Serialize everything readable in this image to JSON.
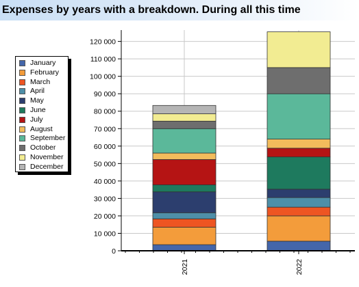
{
  "title": "Expenses by years with a breakdown. During all this time",
  "chart_data": {
    "type": "bar",
    "stacked": true,
    "title": "Expenses by years with a breakdown. During all this time",
    "categories": [
      "2021",
      "2022"
    ],
    "ylim": [
      0,
      125000
    ],
    "y_ticks": [
      "0",
      "10 000",
      "20 000",
      "30 000",
      "40 000",
      "50 000",
      "60 000",
      "70 000",
      "80 000",
      "90 000",
      "100 000",
      "110 000",
      "120 000"
    ],
    "y_tick_values": [
      0,
      10000,
      20000,
      30000,
      40000,
      50000,
      60000,
      70000,
      80000,
      90000,
      100000,
      110000,
      120000
    ],
    "grid": true,
    "legend_position": "left",
    "series": [
      {
        "name": "January",
        "color": "#4466aa",
        "values": [
          3500,
          5500
        ]
      },
      {
        "name": "February",
        "color": "#f39c3b",
        "values": [
          10000,
          14500
        ]
      },
      {
        "name": "March",
        "color": "#ee5522",
        "values": [
          4800,
          5000
        ]
      },
      {
        "name": "April",
        "color": "#4e8fa8",
        "values": [
          3500,
          5500
        ]
      },
      {
        "name": "May",
        "color": "#2c3e6e",
        "values": [
          12000,
          4800
        ]
      },
      {
        "name": "June",
        "color": "#1e7a5e",
        "values": [
          4000,
          18500
        ]
      },
      {
        "name": "July",
        "color": "#b51414",
        "values": [
          14500,
          5000
        ]
      },
      {
        "name": "August",
        "color": "#f2bc5c",
        "values": [
          3700,
          5200
        ]
      },
      {
        "name": "September",
        "color": "#5bb89a",
        "values": [
          14000,
          26000
        ]
      },
      {
        "name": "October",
        "color": "#6e6e6e",
        "values": [
          4300,
          15000
        ]
      },
      {
        "name": "November",
        "color": "#f2ec92",
        "values": [
          4200,
          20500
        ]
      },
      {
        "name": "December",
        "color": "#b5b5b5",
        "values": [
          4800,
          0
        ]
      }
    ]
  }
}
